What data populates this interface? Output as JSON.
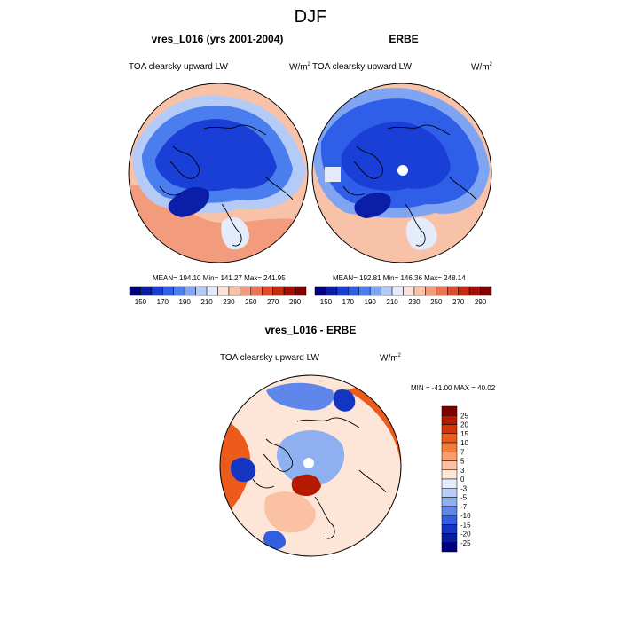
{
  "figure": {
    "title": "DJF",
    "panels": {
      "model": {
        "title": "vres_L016 (yrs 2001-2004)",
        "left_label": "TOA clearsky upward LW",
        "units": "W/m",
        "units_exp": "2",
        "stats": "MEAN= 194.10  Min= 141.27  Max= 241.95"
      },
      "obs": {
        "title": "ERBE",
        "left_label": "TOA clearsky upward LW",
        "units": "W/m",
        "units_exp": "2",
        "stats": "MEAN= 192.81  Min= 146.36  Max= 248.14"
      },
      "diff": {
        "title": "vres_L016 - ERBE",
        "left_label": "TOA clearsky upward LW",
        "units": "W/m",
        "units_exp": "2",
        "stats": "MIN = -41.00 MAX =  40.02"
      }
    }
  },
  "chart_data": [
    {
      "type": "heatmap",
      "projection": "polar stereographic (north pole)",
      "title": "vres_L016 (yrs 2001-2004)",
      "variable": "TOA clearsky upward LW",
      "units": "W/m2",
      "stats": {
        "mean": 194.1,
        "min": 141.27,
        "max": 241.95
      },
      "colorbar": {
        "levels": [
          150,
          160,
          170,
          180,
          190,
          200,
          210,
          220,
          230,
          240,
          250,
          260,
          270,
          280,
          290
        ],
        "tick_labels": [
          "150",
          "170",
          "190",
          "210",
          "230",
          "250",
          "270",
          "290"
        ],
        "colors": [
          "#00007f",
          "#0a1ea8",
          "#1a3fd6",
          "#2f5fe8",
          "#4a7ded",
          "#7ea4f2",
          "#b4cbf7",
          "#e4ecfb",
          "#fbe3d9",
          "#f7c2a8",
          "#f39c7d",
          "#ec7252",
          "#e04b2b",
          "#c72a10",
          "#a30d03",
          "#7f0000"
        ]
      }
    },
    {
      "type": "heatmap",
      "projection": "polar stereographic (north pole)",
      "title": "ERBE",
      "variable": "TOA clearsky upward LW",
      "units": "W/m2",
      "stats": {
        "mean": 192.81,
        "min": 146.36,
        "max": 248.14
      },
      "colorbar": {
        "levels": [
          150,
          160,
          170,
          180,
          190,
          200,
          210,
          220,
          230,
          240,
          250,
          260,
          270,
          280,
          290
        ],
        "tick_labels": [
          "150",
          "170",
          "190",
          "210",
          "230",
          "250",
          "270",
          "290"
        ],
        "colors": [
          "#00007f",
          "#0a1ea8",
          "#1a3fd6",
          "#2f5fe8",
          "#4a7ded",
          "#7ea4f2",
          "#b4cbf7",
          "#e4ecfb",
          "#fbe3d9",
          "#f7c2a8",
          "#f39c7d",
          "#ec7252",
          "#e04b2b",
          "#c72a10",
          "#a30d03",
          "#7f0000"
        ]
      }
    },
    {
      "type": "heatmap",
      "projection": "polar stereographic (north pole)",
      "title": "vres_L016 - ERBE",
      "variable": "TOA clearsky upward LW",
      "units": "W/m2",
      "stats": {
        "min": -41.0,
        "max": 40.02
      },
      "colorbar": {
        "orientation": "vertical",
        "levels": [
          -25,
          -20,
          -15,
          -10,
          -7,
          -5,
          -3,
          0,
          3,
          5,
          7,
          10,
          15,
          20,
          25
        ],
        "tick_labels": [
          "25",
          "20",
          "15",
          "10",
          "7",
          "5",
          "3",
          "0",
          "-3",
          "-5",
          "-7",
          "-10",
          "-15",
          "-20",
          "-25"
        ],
        "colors_top_to_bottom": [
          "#7f0000",
          "#b51a00",
          "#d8320a",
          "#ec5a1c",
          "#f27c3c",
          "#f69e6e",
          "#fac1a3",
          "#fde6d8",
          "#e4ecfb",
          "#b8cef7",
          "#8eb0f1",
          "#5f86ea",
          "#325ee0",
          "#1435c2",
          "#061c9a",
          "#00007f"
        ]
      }
    }
  ]
}
